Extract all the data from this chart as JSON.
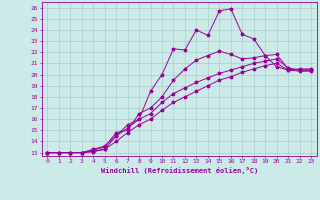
{
  "xlabel": "Windchill (Refroidissement éolien,°C)",
  "xlim": [
    -0.5,
    23.5
  ],
  "ylim": [
    12.7,
    26.5
  ],
  "xticks": [
    0,
    1,
    2,
    3,
    4,
    5,
    6,
    7,
    8,
    9,
    10,
    11,
    12,
    13,
    14,
    15,
    16,
    17,
    18,
    19,
    20,
    21,
    22,
    23
  ],
  "yticks": [
    13,
    14,
    15,
    16,
    17,
    18,
    19,
    20,
    21,
    22,
    23,
    24,
    25,
    26
  ],
  "bg_color": "#cceae7",
  "grid_color": "#aacccc",
  "line_color": "#990099",
  "line1_x": [
    0,
    1,
    2,
    3,
    4,
    5,
    6,
    7,
    8,
    9,
    10,
    11,
    12,
    13,
    14,
    15,
    16,
    17,
    18,
    19,
    20,
    21,
    22,
    23
  ],
  "line1_y": [
    13,
    13,
    13,
    13,
    13.1,
    13.3,
    14.5,
    15.5,
    16.0,
    18.5,
    20.0,
    22.3,
    22.2,
    24.0,
    23.5,
    25.7,
    25.9,
    23.6,
    23.2,
    21.7,
    20.7,
    20.4,
    20.5,
    20.5
  ],
  "line2_x": [
    0,
    1,
    2,
    3,
    4,
    5,
    6,
    7,
    8,
    9,
    10,
    11,
    12,
    13,
    14,
    15,
    16,
    17,
    18,
    19,
    20,
    21,
    22,
    23
  ],
  "line2_y": [
    13,
    13,
    13,
    13,
    13.2,
    13.5,
    14.8,
    15.0,
    16.5,
    17.0,
    18.0,
    19.5,
    20.5,
    21.3,
    21.7,
    22.1,
    21.8,
    21.4,
    21.5,
    21.7,
    21.8,
    20.5,
    20.4,
    20.4
  ],
  "line3_x": [
    0,
    1,
    2,
    3,
    4,
    5,
    6,
    7,
    8,
    9,
    10,
    11,
    12,
    13,
    14,
    15,
    16,
    17,
    18,
    19,
    20,
    21,
    22,
    23
  ],
  "line3_y": [
    13,
    13,
    13,
    13,
    13.3,
    13.6,
    14.5,
    15.2,
    16.0,
    16.5,
    17.5,
    18.3,
    18.8,
    19.3,
    19.7,
    20.1,
    20.4,
    20.7,
    21.0,
    21.2,
    21.4,
    20.6,
    20.4,
    20.4
  ],
  "line4_x": [
    0,
    1,
    2,
    3,
    4,
    5,
    6,
    7,
    8,
    9,
    10,
    11,
    12,
    13,
    14,
    15,
    16,
    17,
    18,
    19,
    20,
    21,
    22,
    23
  ],
  "line4_y": [
    13,
    13,
    13,
    13,
    13.1,
    13.3,
    14.0,
    14.8,
    15.5,
    16.0,
    16.8,
    17.5,
    18.0,
    18.5,
    19.0,
    19.5,
    19.8,
    20.2,
    20.5,
    20.8,
    21.0,
    20.4,
    20.3,
    20.3
  ]
}
